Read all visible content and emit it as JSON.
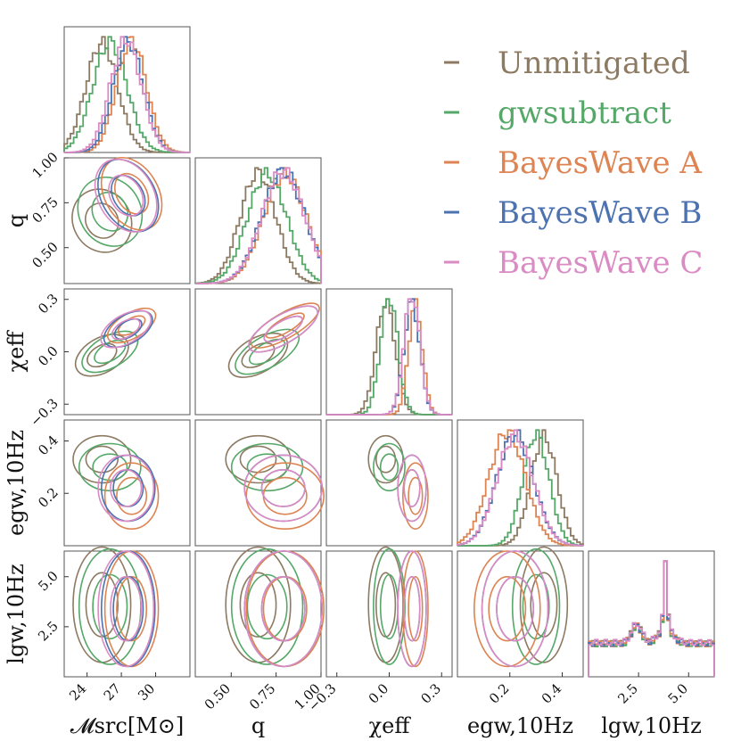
{
  "chart_data": {
    "type": "corner",
    "parameters": [
      {
        "key": "mchirp",
        "label": "𝓜src[M⊙]",
        "range": [
          22.0,
          33.0
        ],
        "ticks": [
          24,
          27,
          30
        ]
      },
      {
        "key": "q",
        "label": "q",
        "range": [
          0.3,
          1.0
        ],
        "ticks": [
          0.5,
          0.75,
          1.0
        ],
        "ticklabels": [
          "0.50",
          "0.75",
          "1.00"
        ]
      },
      {
        "key": "chi_eff",
        "label": "χeff",
        "range": [
          -0.36,
          0.36
        ],
        "ticks": [
          -0.3,
          0.0,
          0.3
        ],
        "ticklabels": [
          "−0.3",
          "0.0",
          "0.3"
        ]
      },
      {
        "key": "e_gw",
        "label": "egw,10Hz",
        "range": [
          0.0,
          0.48
        ],
        "ticks": [
          0.2,
          0.4
        ],
        "ticklabels": [
          "0.2",
          "0.4"
        ]
      },
      {
        "key": "l_gw",
        "label": "lgw,10Hz",
        "range": [
          0.0,
          6.28
        ],
        "ticks": [
          2.5,
          5.0
        ],
        "ticklabels": [
          "2.5",
          "5.0"
        ]
      }
    ],
    "row_ticklabels": {
      "q": [
        "0.50",
        "0.75",
        "1.00"
      ],
      "chi_eff": [
        "−0.3",
        "0.0",
        "0.3"
      ],
      "e_gw": [
        "0.2",
        "0.4"
      ],
      "l_gw": [
        "2.5",
        "5.0"
      ]
    },
    "series": [
      {
        "name": "Unmitigated",
        "color": "#8c7a62",
        "mean": [
          25.3,
          0.65,
          -0.02,
          0.33,
          3.6
        ],
        "std": [
          1.4,
          0.1,
          0.055,
          0.05,
          1.6
        ]
      },
      {
        "name": "gwsubtract",
        "color": "#55a868",
        "mean": [
          26.0,
          0.7,
          0.0,
          0.3,
          3.5
        ],
        "std": [
          1.5,
          0.11,
          0.05,
          0.05,
          1.6
        ]
      },
      {
        "name": "BayesWave A",
        "color": "#dd8452",
        "mean": [
          27.9,
          0.8,
          0.15,
          0.19,
          3.4
        ],
        "std": [
          1.3,
          0.12,
          0.04,
          0.07,
          1.6
        ]
      },
      {
        "name": "BayesWave B",
        "color": "#4c72b0",
        "mean": [
          27.6,
          0.79,
          0.13,
          0.22,
          3.4
        ],
        "std": [
          1.3,
          0.12,
          0.045,
          0.07,
          1.6
        ]
      },
      {
        "name": "BayesWave C",
        "color": "#da8bc3",
        "mean": [
          27.4,
          0.79,
          0.13,
          0.22,
          3.4
        ],
        "std": [
          1.35,
          0.12,
          0.045,
          0.07,
          1.6
        ]
      }
    ],
    "legend_position": "top-right",
    "grid": false
  }
}
